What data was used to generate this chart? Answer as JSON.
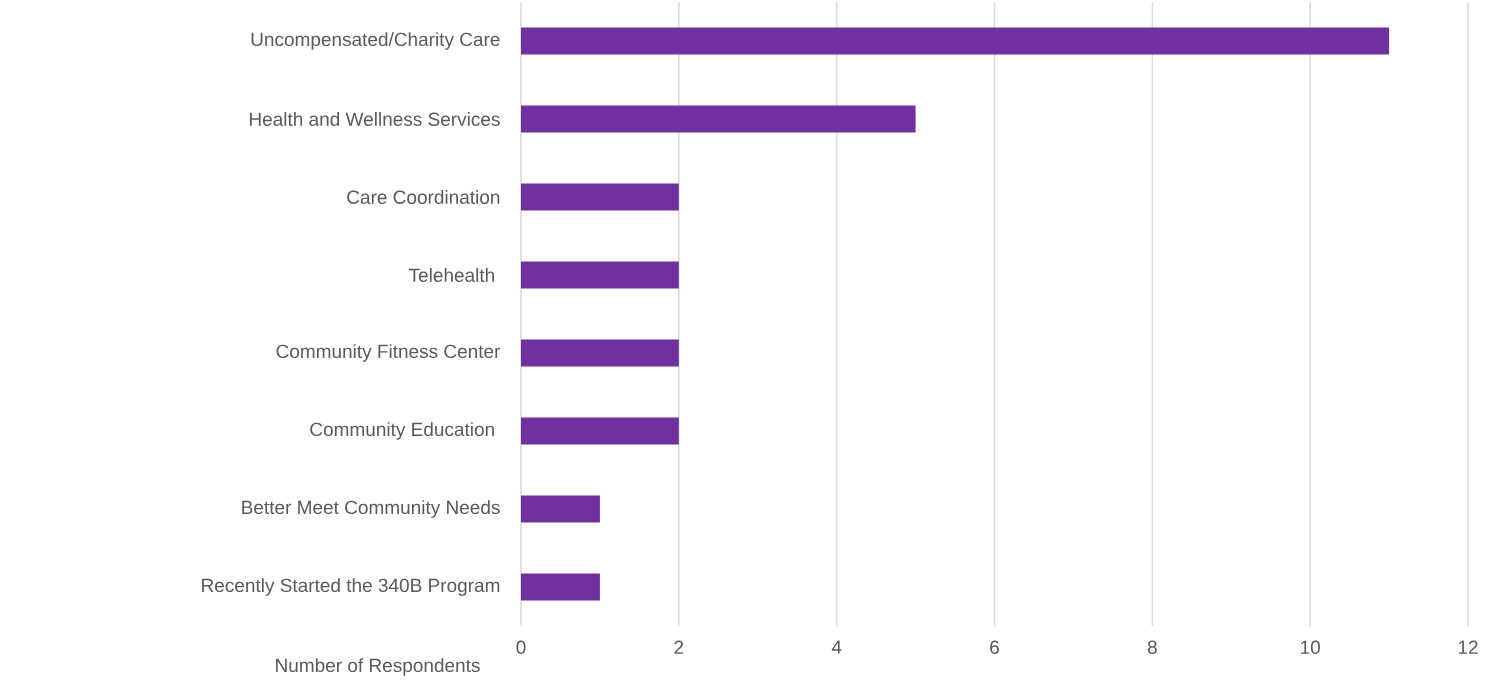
{
  "chart_data": {
    "type": "bar",
    "orientation": "horizontal",
    "xlabel": "Number of Respondents",
    "categories": [
      "Uncompensated/Charity  Care",
      "Health and Wellness Services",
      "Care Coordination",
      "Telehealth ",
      "Community Fitness Center",
      "Community Education ",
      "Better Meet Community Needs",
      "Recently Started the 340B Program"
    ],
    "values": [
      11,
      5,
      2,
      2,
      2,
      2,
      1,
      1
    ],
    "color": "#7030a0",
    "xlim": [
      0,
      12
    ],
    "xticks": [
      0,
      2,
      4,
      6,
      8,
      10,
      12
    ],
    "grid": "x"
  }
}
